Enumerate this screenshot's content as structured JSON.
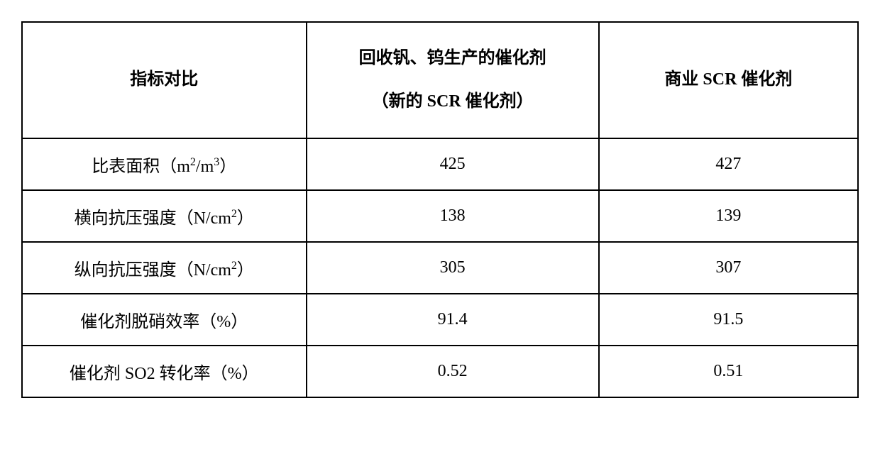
{
  "table": {
    "columns": [
      {
        "header_line1": "指标对比",
        "header_line2": ""
      },
      {
        "header_line1": "回收钒、钨生产的催化剂",
        "header_line2": "（新的 SCR 催化剂）"
      },
      {
        "header_line1": "商业 SCR 催化剂",
        "header_line2": ""
      }
    ],
    "rows": [
      {
        "label_prefix": "比表面积（m",
        "label_sup1": "2",
        "label_mid": "/m",
        "label_sup2": "3",
        "label_suffix": "）",
        "val1": "425",
        "val2": "427"
      },
      {
        "label_prefix": "横向抗压强度（N/cm",
        "label_sup1": "2",
        "label_mid": "",
        "label_sup2": "",
        "label_suffix": "）",
        "val1": "138",
        "val2": "139"
      },
      {
        "label_prefix": "纵向抗压强度（N/cm",
        "label_sup1": "2",
        "label_mid": "",
        "label_sup2": "",
        "label_suffix": "）",
        "val1": "305",
        "val2": "307"
      },
      {
        "label_prefix": "催化剂脱硝效率（%）",
        "label_sup1": "",
        "label_mid": "",
        "label_sup2": "",
        "label_suffix": "",
        "val1": "91.4",
        "val2": "91.5"
      },
      {
        "label_prefix": "催化剂 SO2 转化率（%）",
        "label_sup1": "",
        "label_mid": "",
        "label_sup2": "",
        "label_suffix": "",
        "val1": "0.52",
        "val2": "0.51"
      }
    ],
    "border_color": "#000000",
    "background_color": "#ffffff",
    "text_color": "#000000",
    "header_fontsize": 24,
    "cell_fontsize": 24,
    "column_widths": [
      "34%",
      "35%",
      "31%"
    ]
  }
}
